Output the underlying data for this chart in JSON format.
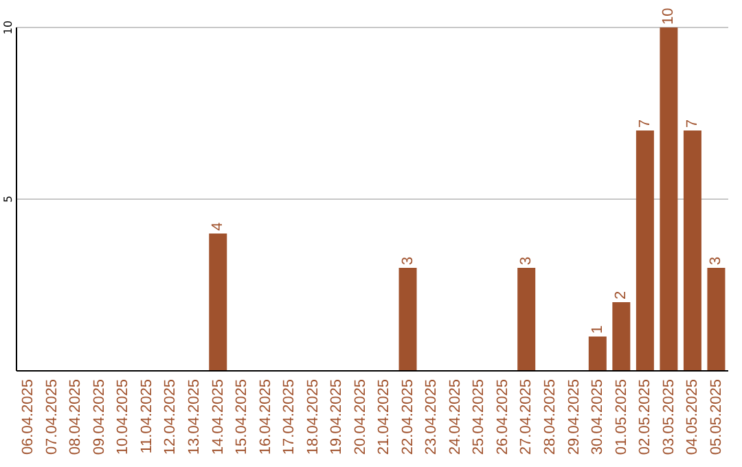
{
  "chart_data": {
    "type": "bar",
    "categories": [
      "06.04.2025",
      "07.04.2025",
      "08.04.2025",
      "09.04.2025",
      "10.04.2025",
      "11.04.2025",
      "12.04.2025",
      "13.04.2025",
      "14.04.2025",
      "15.04.2025",
      "16.04.2025",
      "17.04.2025",
      "18.04.2025",
      "19.04.2025",
      "20.04.2025",
      "21.04.2025",
      "22.04.2025",
      "23.04.2025",
      "24.04.2025",
      "25.04.2025",
      "26.04.2025",
      "27.04.2025",
      "28.04.2025",
      "29.04.2025",
      "30.04.2025",
      "01.05.2025",
      "02.05.2025",
      "03.05.2025",
      "04.05.2025",
      "05.05.2025"
    ],
    "values": [
      0,
      0,
      0,
      0,
      0,
      0,
      0,
      0,
      4,
      0,
      0,
      0,
      0,
      0,
      0,
      0,
      3,
      0,
      0,
      0,
      0,
      3,
      0,
      0,
      1,
      2,
      7,
      10,
      7,
      3
    ],
    "value_labels": [
      null,
      null,
      null,
      null,
      null,
      null,
      null,
      null,
      "4",
      null,
      null,
      null,
      null,
      null,
      null,
      null,
      "3",
      null,
      null,
      null,
      null,
      "3",
      null,
      null,
      "1",
      "2",
      "7",
      "10",
      "7",
      "3"
    ],
    "color": "#a0522d",
    "ylim": [
      0,
      10
    ],
    "yticks": [
      {
        "value": 0,
        "label": null
      },
      5,
      10
    ],
    "grid": "y"
  }
}
